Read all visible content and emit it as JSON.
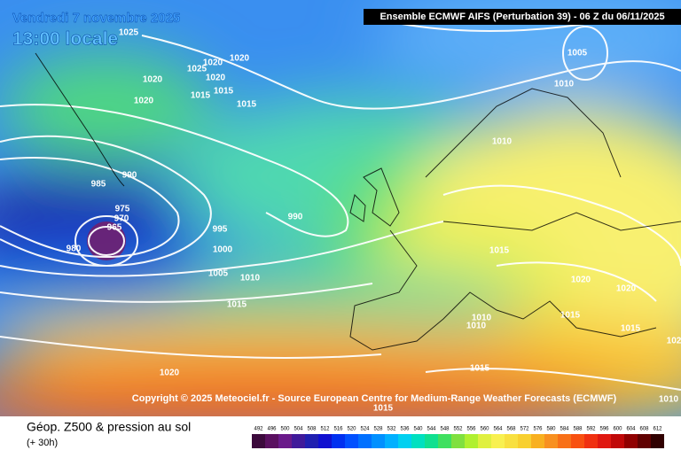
{
  "header": {
    "date": "Vendredi 7 novembre 2025",
    "local_time": "13:00 locale",
    "run": "Ensemble ECMWF AIFS  (Perturbation 39)  -  06 Z du 06/11/2025"
  },
  "map": {
    "isobar_labels": [
      1025,
      1020,
      1020,
      1025,
      1020,
      1020,
      1015,
      1015,
      1020,
      1015,
      1005,
      1010,
      1010,
      990,
      985,
      975,
      970,
      965,
      980,
      990,
      995,
      1000,
      1005,
      1010,
      1015,
      1015,
      1020,
      1020,
      1015,
      1010,
      1010,
      1015,
      102,
      1015,
      1020,
      1015,
      1010
    ]
  },
  "copyright": "Copyright © 2025 Meteociel.fr - Source European Centre for Medium-Range Weather Forecasts (ECMWF)",
  "footer": {
    "title": "Géop. Z500 & pression au sol",
    "lead": "(+ 30h)"
  },
  "legend": {
    "labels": [
      492,
      496,
      500,
      504,
      508,
      512,
      516,
      520,
      524,
      528,
      532,
      536,
      540,
      544,
      548,
      552,
      556,
      560,
      564,
      568,
      572,
      576,
      580,
      584,
      588,
      592,
      596,
      600,
      604,
      608,
      612
    ],
    "colors": [
      "#3c0a3c",
      "#5a1060",
      "#6a1a8a",
      "#401a9a",
      "#2020b0",
      "#1010d0",
      "#0030f0",
      "#0050ff",
      "#0070ff",
      "#0090ff",
      "#00b0ff",
      "#00d0f0",
      "#00e0c0",
      "#10e090",
      "#40e060",
      "#80e040",
      "#b0f030",
      "#e0f040",
      "#f8f050",
      "#f8e040",
      "#f8d030",
      "#f8b020",
      "#f89020",
      "#f87018",
      "#f85010",
      "#f03010",
      "#e01810",
      "#c00808",
      "#900000",
      "#600000",
      "#300000"
    ]
  }
}
